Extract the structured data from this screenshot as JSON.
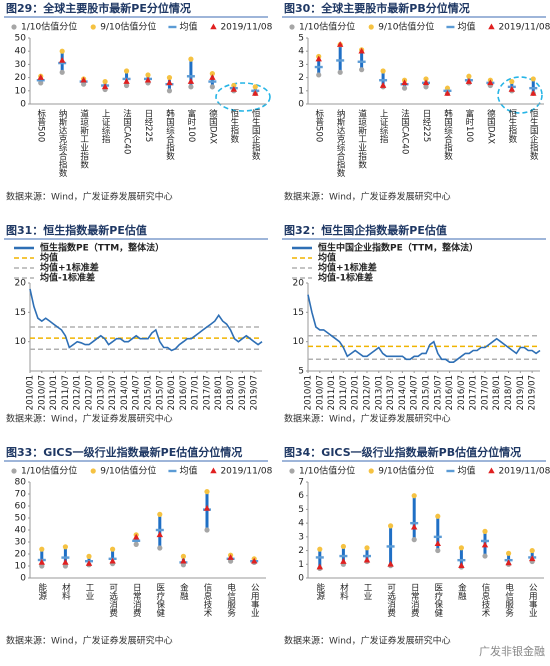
{
  "chart_data": [
    {
      "type": "range",
      "title": "图29：全球主要股市最新PE分位情况",
      "source": "数据来源：Wind，广发证券发展研究中心",
      "categories": [
        "标普500",
        "纳斯达克综合指数",
        "道琼斯工业指数",
        "上证综指",
        "法国CAC40",
        "日经225",
        "韩国综合指数",
        "富时100",
        "德国DAX",
        "恒生指数",
        "恒生国企指数"
      ],
      "series": [
        {
          "name": "1/10估值分位",
          "color": "#a6a6a6",
          "marker": "circle",
          "values": [
            16,
            24,
            15,
            11,
            14,
            16,
            10,
            13,
            13,
            10,
            8
          ]
        },
        {
          "name": "9/10估值分位",
          "color": "#f5c242",
          "marker": "circle",
          "values": [
            21,
            40,
            19,
            17,
            25,
            22,
            20,
            34,
            23,
            14,
            13
          ]
        },
        {
          "name": "均值",
          "color": "#5b9bd5",
          "marker": "dash",
          "values": [
            18,
            31,
            17,
            14,
            19,
            19,
            15,
            21,
            17,
            12,
            10
          ]
        },
        {
          "name": "2019/11/08",
          "color": "#e02020",
          "marker": "triangle",
          "values": [
            20,
            33,
            18,
            13,
            17,
            18,
            16,
            17,
            20,
            11,
            8
          ]
        }
      ],
      "range_color": "#1f6fc5",
      "ylim": [
        0,
        50
      ],
      "yticks": [
        0,
        10,
        20,
        30,
        40,
        50
      ]
    },
    {
      "type": "range",
      "title": "图30：全球主要股市最新PB分位情况",
      "source": "数据来源：Wind，广发证券发展研究中心",
      "categories": [
        "标普500",
        "纳斯达克综合指数",
        "道琼斯工业指数",
        "上证综指",
        "法国CAC40",
        "日经225",
        "韩国综合指数",
        "富时100",
        "德国DAX",
        "恒生指数",
        "恒生国企指数"
      ],
      "series": [
        {
          "name": "1/10估值分位",
          "color": "#a6a6a6",
          "marker": "circle",
          "values": [
            2.2,
            2.4,
            2.6,
            1.3,
            1.2,
            1.3,
            0.8,
            1.6,
            1.4,
            1.0,
            0.8
          ]
        },
        {
          "name": "9/10估值分位",
          "color": "#f5c242",
          "marker": "circle",
          "values": [
            3.6,
            4.5,
            4.1,
            2.5,
            1.8,
            1.9,
            1.2,
            2.1,
            1.8,
            1.7,
            1.9
          ]
        },
        {
          "name": "均值",
          "color": "#5b9bd5",
          "marker": "dash",
          "values": [
            2.8,
            3.3,
            3.2,
            1.8,
            1.5,
            1.6,
            1.0,
            1.8,
            1.6,
            1.3,
            1.2
          ]
        },
        {
          "name": "2019/11/08",
          "color": "#e02020",
          "marker": "triangle",
          "values": [
            3.4,
            4.5,
            4.0,
            1.4,
            1.6,
            1.6,
            0.8,
            1.7,
            1.6,
            1.1,
            0.8
          ]
        }
      ],
      "range_color": "#1f6fc5",
      "ylim": [
        0,
        5
      ],
      "yticks": [
        0,
        1,
        2,
        3,
        4,
        5
      ]
    },
    {
      "type": "line",
      "title": "图31：恒生指数最新PE估值",
      "source": "数据来源：Wind，广发证券发展研究中心",
      "categories": [
        "2010/01",
        null,
        null,
        "2010/07",
        null,
        null,
        "2011/01",
        null,
        null,
        "2011/07",
        null,
        null,
        "2012/01",
        null,
        null,
        "2012/07",
        null,
        null,
        "2013/01",
        null,
        null,
        "2013/07",
        null,
        null,
        "2014/01",
        null,
        null,
        "2014/07",
        null,
        null,
        "2015/01",
        null,
        null,
        "2015/07",
        null,
        null,
        "2016/01",
        null,
        null,
        "2016/07",
        null,
        null,
        "2017/01",
        null,
        null,
        "2017/07",
        null,
        null,
        "2018/01",
        null,
        null,
        "2018/07",
        null,
        null,
        "2019/01",
        null,
        null,
        "2019/07",
        null,
        null
      ],
      "series": [
        {
          "name": "恒生指数PE（TTM，整体法）",
          "color": "#2e6fb5",
          "values": [
            19,
            16,
            14,
            13.5,
            14,
            13.5,
            13,
            12.5,
            12,
            11,
            9,
            9.5,
            10,
            9.8,
            9.5,
            9.5,
            10,
            10.5,
            11,
            10.5,
            9.5,
            10,
            10.5,
            10.5,
            10,
            10,
            10.5,
            11,
            10.5,
            10.5,
            10.5,
            11.5,
            12,
            10,
            9,
            9,
            8.5,
            8.8,
            9.5,
            10,
            10.5,
            10.5,
            11,
            11.5,
            12,
            12.5,
            13,
            13.5,
            14.5,
            13.5,
            13,
            12,
            10.5,
            10,
            10.5,
            11,
            10.5,
            10,
            9.5,
            10
          ]
        }
      ],
      "hlines": [
        {
          "name": "均值",
          "color": "#f0b400",
          "value": 10.6
        },
        {
          "name": "均值+1标准差",
          "color": "#b0b0b0",
          "value": 12.5
        },
        {
          "name": "均值-1标准差",
          "color": "#b0b0b0",
          "value": 8.7
        }
      ],
      "ylim": [
        5,
        20
      ],
      "yticks": [
        10,
        15,
        20
      ]
    },
    {
      "type": "line",
      "title": "图32：恒生国企指数最新PE估值",
      "source": "数据来源：Wind，广发证券发展研究中心",
      "categories": [
        "2010/01",
        null,
        null,
        "2010/07",
        null,
        null,
        "2011/01",
        null,
        null,
        "2011/07",
        null,
        null,
        "2012/01",
        null,
        null,
        "2012/07",
        null,
        null,
        "2013/01",
        null,
        null,
        "2013/07",
        null,
        null,
        "2014/01",
        null,
        null,
        "2014/07",
        null,
        null,
        "2015/01",
        null,
        null,
        "2015/07",
        null,
        null,
        "2016/01",
        null,
        null,
        "2016/07",
        null,
        null,
        "2017/01",
        null,
        null,
        "2017/07",
        null,
        null,
        "2018/01",
        null,
        null,
        "2018/07",
        null,
        null,
        "2019/01",
        null,
        null,
        "2019/07",
        null,
        null
      ],
      "series": [
        {
          "name": "恒生中国企业指数PE（TTM，整体法）",
          "color": "#2e6fb5",
          "values": [
            18,
            15,
            12.5,
            12,
            12,
            11.5,
            11,
            10.5,
            10,
            9,
            7.5,
            8,
            8.5,
            8,
            7.5,
            7.5,
            8,
            8.5,
            9,
            8,
            7.5,
            7.5,
            7.5,
            7.5,
            7.5,
            7,
            7,
            7.5,
            7.5,
            8,
            8,
            9.5,
            10,
            8,
            7,
            7,
            6.5,
            6.5,
            7,
            7.5,
            8,
            8,
            8.5,
            8.5,
            9,
            9,
            9.5,
            10,
            10.5,
            10,
            9.5,
            9,
            8.5,
            8,
            9,
            9,
            8.5,
            8.5,
            8,
            8.5
          ]
        }
      ],
      "hlines": [
        {
          "name": "均值",
          "color": "#f0b400",
          "value": 9.2
        },
        {
          "name": "均值+1标准差",
          "color": "#b0b0b0",
          "value": 11
        },
        {
          "name": "均值-1标准差",
          "color": "#b0b0b0",
          "value": 7
        }
      ],
      "ylim": [
        5,
        20
      ],
      "yticks": [
        5,
        10,
        15,
        20
      ]
    },
    {
      "type": "range",
      "title": "图33：GICS一级行业指数最新PE估值分位情况",
      "source": "数据来源：Wind，广发证券发展研究中心",
      "categories": [
        "能源",
        "材料",
        "工业",
        "可选消费",
        "日常消费",
        "医疗保健",
        "金融",
        "信息技术",
        "电信服务",
        "公用事业"
      ],
      "series": [
        {
          "name": "1/10估值分位",
          "color": "#a6a6a6",
          "marker": "circle",
          "values": [
            10,
            10,
            11,
            12,
            28,
            25,
            11,
            40,
            14,
            13
          ]
        },
        {
          "name": "9/10估值分位",
          "color": "#f5c242",
          "marker": "circle",
          "values": [
            24,
            26,
            18,
            24,
            36,
            53,
            18,
            72,
            19,
            16
          ]
        },
        {
          "name": "均值",
          "color": "#5b9bd5",
          "marker": "dash",
          "values": [
            15,
            17,
            14,
            16,
            31,
            40,
            13,
            57,
            16,
            14
          ]
        },
        {
          "name": "2019/11/08",
          "color": "#e02020",
          "marker": "triangle",
          "values": [
            13,
            13,
            12,
            14,
            34,
            36,
            14,
            58,
            17,
            14
          ]
        }
      ],
      "range_color": "#1f6fc5",
      "ylim": [
        0,
        80
      ],
      "yticks": [
        0,
        10,
        20,
        30,
        40,
        50,
        60,
        70,
        80
      ]
    },
    {
      "type": "range",
      "title": "图34：GICS一级行业指数最新PB估值分位情况",
      "source": "数据来源：Wind，广发证券发展研究中心",
      "categories": [
        "能源",
        "材料",
        "工业",
        "可选消费",
        "日常消费",
        "医疗保健",
        "金融",
        "信息技术",
        "电信服务",
        "公用事业"
      ],
      "series": [
        {
          "name": "1/10估值分位",
          "color": "#a6a6a6",
          "marker": "circle",
          "values": [
            0.7,
            1.0,
            1.2,
            0.9,
            2.8,
            2.0,
            0.8,
            1.6,
            1.0,
            1.2
          ]
        },
        {
          "name": "9/10估值分位",
          "color": "#f5c242",
          "marker": "circle",
          "values": [
            2.1,
            2.3,
            2.2,
            3.8,
            6.0,
            4.5,
            2.2,
            3.4,
            1.8,
            2.0
          ]
        },
        {
          "name": "均值",
          "color": "#5b9bd5",
          "marker": "dash",
          "values": [
            1.5,
            1.6,
            1.6,
            2.3,
            4.0,
            3.0,
            1.3,
            2.7,
            1.3,
            1.5
          ]
        },
        {
          "name": "2019/11/08",
          "color": "#e02020",
          "marker": "triangle",
          "values": [
            0.8,
            1.2,
            1.3,
            1.0,
            3.7,
            2.5,
            0.9,
            2.4,
            1.1,
            1.4
          ]
        }
      ],
      "range_color": "#1f6fc5",
      "ylim": [
        0,
        7
      ],
      "yticks": [
        0,
        1,
        2,
        3,
        4,
        5,
        6,
        7
      ]
    }
  ],
  "watermark": "广发非银金融"
}
